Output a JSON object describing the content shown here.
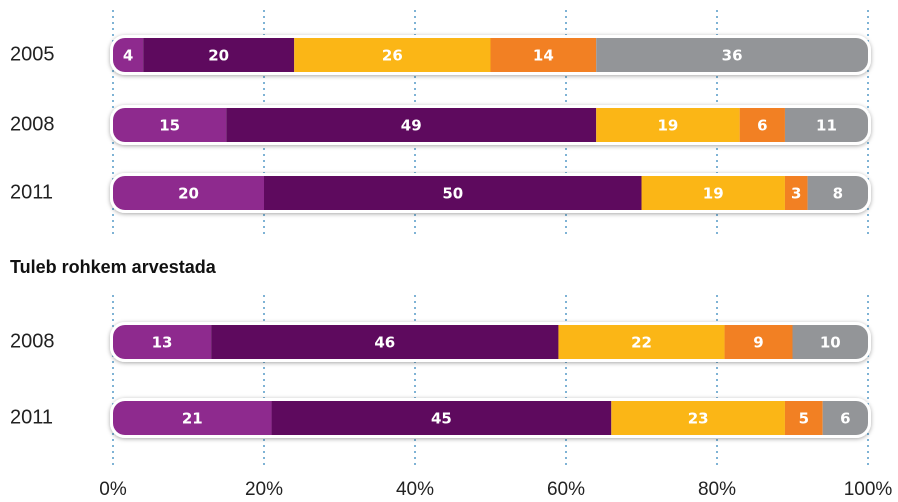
{
  "chart_data": [
    {
      "type": "bar",
      "orientation": "horizontal",
      "stacked": true,
      "categories": [
        "2005",
        "2008",
        "2011"
      ],
      "series": [
        {
          "color": "#8e2a8e",
          "values": [
            4,
            15,
            20
          ]
        },
        {
          "color": "#5e0a5e",
          "values": [
            20,
            49,
            50
          ]
        },
        {
          "color": "#fbb616",
          "values": [
            26,
            19,
            19
          ]
        },
        {
          "color": "#f28023",
          "values": [
            14,
            6,
            3
          ]
        },
        {
          "color": "#939598",
          "values": [
            36,
            11,
            8
          ]
        }
      ],
      "xlim": [
        0,
        100
      ],
      "grid": true
    },
    {
      "type": "bar",
      "orientation": "horizontal",
      "stacked": true,
      "title": "Tuleb rohkem arvestada",
      "categories": [
        "2008",
        "2011"
      ],
      "series": [
        {
          "color": "#8e2a8e",
          "values": [
            13,
            21
          ]
        },
        {
          "color": "#5e0a5e",
          "values": [
            46,
            45
          ]
        },
        {
          "color": "#fbb616",
          "values": [
            22,
            23
          ]
        },
        {
          "color": "#f28023",
          "values": [
            9,
            5
          ]
        },
        {
          "color": "#939598",
          "values": [
            10,
            6
          ]
        }
      ],
      "xlim": [
        0,
        100
      ],
      "xticks": [
        {
          "value": 0,
          "label": "0%"
        },
        {
          "value": 20,
          "label": "20%"
        },
        {
          "value": 40,
          "label": "40%"
        },
        {
          "value": 60,
          "label": "60%"
        },
        {
          "value": 80,
          "label": "80%"
        },
        {
          "value": 100,
          "label": "100%"
        }
      ],
      "grid": true
    }
  ]
}
